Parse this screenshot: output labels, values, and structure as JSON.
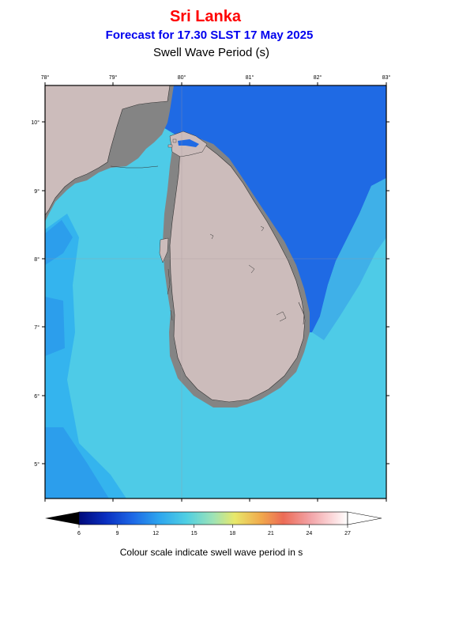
{
  "header": {
    "region": "Sri Lanka",
    "forecast": "Forecast for  17.30 SLST 17 May 2025",
    "parameter": "Swell Wave Period (s)"
  },
  "map": {
    "lon_ticks": [
      "78°",
      "79°",
      "80°",
      "81°",
      "82°",
      "83°"
    ],
    "lat_ticks": [
      "10°",
      "9°",
      "8°",
      "7°",
      "6°",
      "5°"
    ],
    "colors": {
      "sea_light": "#4ecbe7",
      "sea_mid": "#34b4ee",
      "sea_deep": "#1f6ae4",
      "land": "#ccbcbb",
      "mainland_shadow": "#848484"
    }
  },
  "colorbar": {
    "ticks": [
      "6",
      "9",
      "12",
      "15",
      "18",
      "21",
      "24",
      "27"
    ],
    "caption": "Colour scale indicate swell wave period in s"
  }
}
